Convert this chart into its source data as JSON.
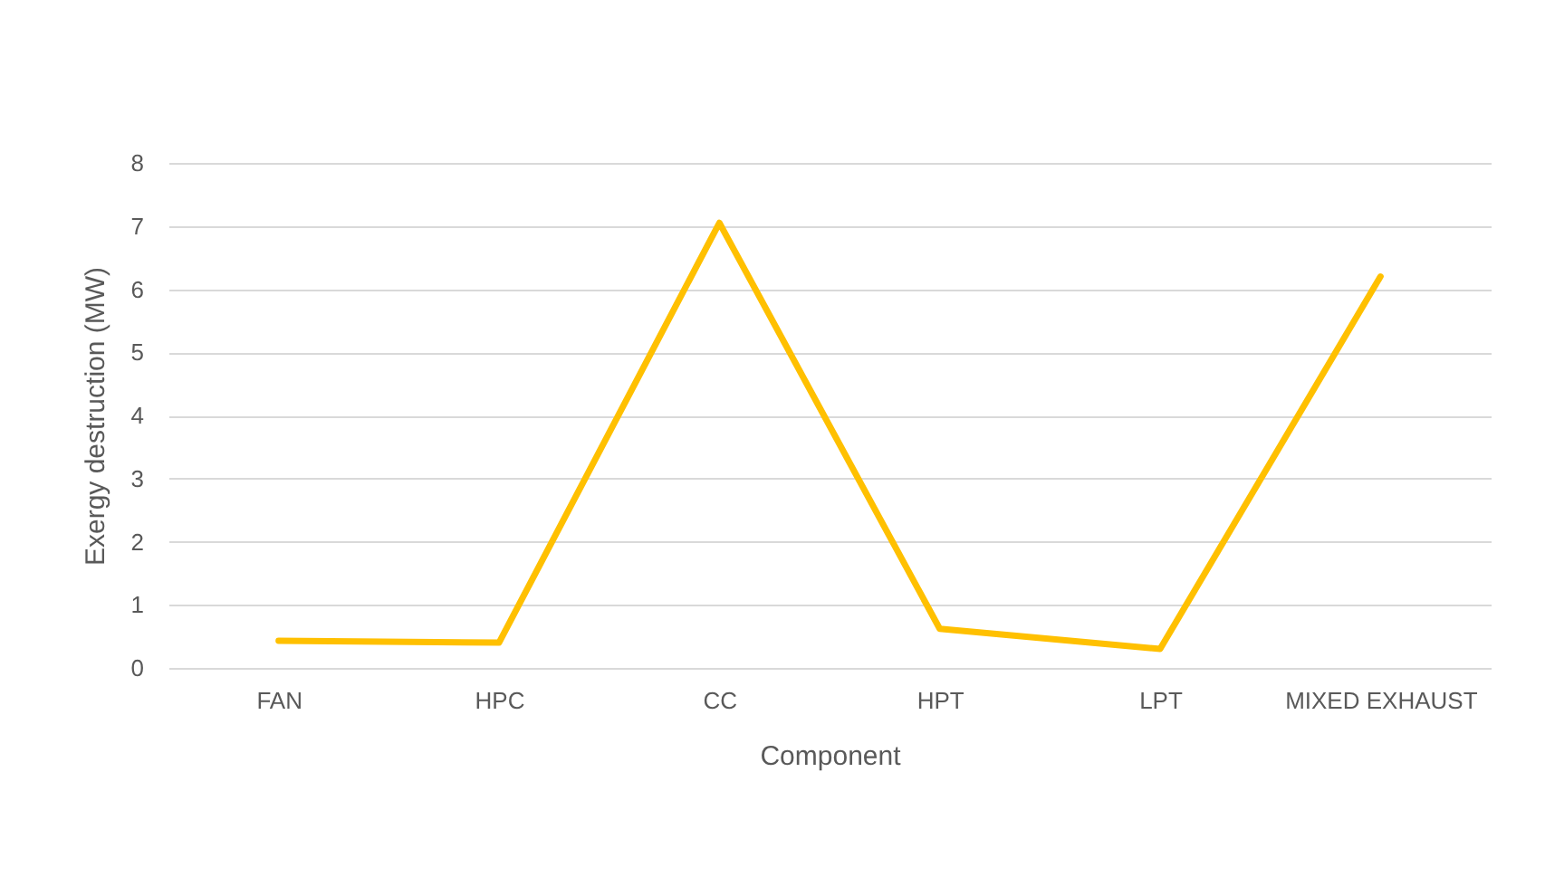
{
  "chart_data": {
    "type": "line",
    "xlabel": "Component",
    "ylabel": "Exergy destruction (MW)",
    "categories": [
      "FAN",
      "HPC",
      "CC",
      "HPT",
      "LPT",
      "MIXED EXHAUST"
    ],
    "series": [
      {
        "color": "#ffc000",
        "values": [
          0.43,
          0.4,
          7.05,
          0.62,
          0.3,
          6.2
        ]
      }
    ],
    "ylim": [
      0,
      8
    ],
    "yticks": [
      0,
      1,
      2,
      3,
      4,
      5,
      6,
      7,
      8
    ],
    "grid": "y",
    "legend": false,
    "marker": "none",
    "line_style": "solid"
  }
}
